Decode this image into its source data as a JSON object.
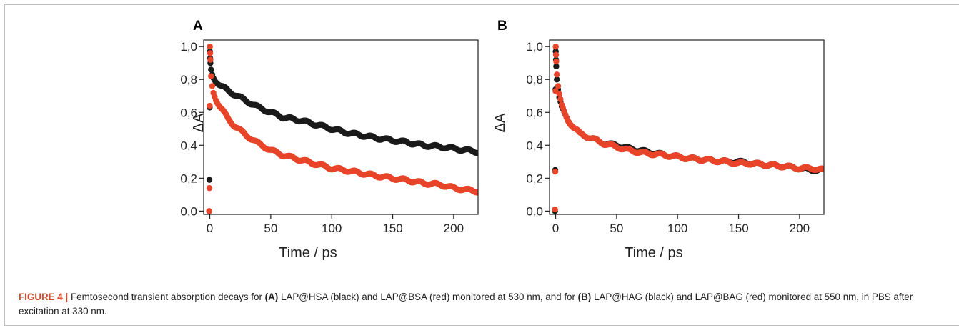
{
  "caption": {
    "figure_label": "FIGURE 4 |",
    "text_1": " Femtosecond transient absorption decays for ",
    "ref_a": "(A)",
    "text_2": " LAP@HSA (black) and LAP@BSA (red) monitored at 530 nm, and for ",
    "ref_b": "(B)",
    "text_3": " LAP@HAG (black) and LAP@BAG (red) monitored at 550 nm, in PBS after excitation at 330 nm."
  },
  "colors": {
    "black_series": "#1a1a1a",
    "red_series": "#e8442a"
  },
  "chart_data": [
    {
      "type": "scatter",
      "panel_label": "A",
      "xlabel": "Time / ps",
      "ylabel": "ΔA",
      "xlim": [
        -5,
        220
      ],
      "ylim": [
        -0.02,
        1.04
      ],
      "xticks": [
        0,
        50,
        100,
        150,
        200
      ],
      "xtick_labels": [
        "0",
        "50",
        "100",
        "150",
        "200"
      ],
      "yticks": [
        0.0,
        0.2,
        0.4,
        0.6,
        0.8,
        1.0
      ],
      "ytick_labels": [
        "0,0",
        "0,2",
        "0,4",
        "0,6",
        "0,8",
        "1,0"
      ],
      "grid": false,
      "series": [
        {
          "color": "black",
          "x": [
            -0.5,
            -0.3,
            -0.1,
            0.1,
            0.3,
            0.5,
            1,
            2,
            3,
            5,
            8,
            10,
            15,
            20,
            30,
            40,
            50,
            60,
            75,
            90,
            100,
            110,
            125,
            140,
            150,
            160,
            175,
            190,
            200,
            210,
            220
          ],
          "y": [
            0.0,
            0.19,
            0.63,
            0.97,
            0.93,
            0.9,
            0.86,
            0.83,
            0.81,
            0.79,
            0.77,
            0.76,
            0.73,
            0.71,
            0.67,
            0.63,
            0.6,
            0.57,
            0.55,
            0.52,
            0.5,
            0.48,
            0.46,
            0.44,
            0.43,
            0.42,
            0.4,
            0.39,
            0.38,
            0.37,
            0.36
          ]
        },
        {
          "color": "red",
          "x": [
            -0.5,
            -0.3,
            -0.1,
            0.1,
            0.3,
            0.5,
            1,
            2,
            3,
            5,
            8,
            10,
            15,
            20,
            30,
            40,
            50,
            60,
            75,
            90,
            100,
            110,
            125,
            140,
            150,
            160,
            175,
            190,
            200,
            210,
            220
          ],
          "y": [
            0.0,
            0.14,
            0.64,
            1.0,
            0.96,
            0.92,
            0.82,
            0.76,
            0.72,
            0.68,
            0.64,
            0.62,
            0.56,
            0.52,
            0.46,
            0.41,
            0.37,
            0.34,
            0.31,
            0.28,
            0.26,
            0.25,
            0.23,
            0.21,
            0.2,
            0.19,
            0.17,
            0.16,
            0.14,
            0.13,
            0.12
          ]
        }
      ]
    },
    {
      "type": "scatter",
      "panel_label": "B",
      "xlabel": "Time / ps",
      "ylabel": "ΔA",
      "xlim": [
        -5,
        220
      ],
      "ylim": [
        -0.02,
        1.04
      ],
      "xticks": [
        0,
        50,
        100,
        150,
        200
      ],
      "xtick_labels": [
        "0",
        "50",
        "100",
        "150",
        "200"
      ],
      "yticks": [
        0.0,
        0.2,
        0.4,
        0.6,
        0.8,
        1.0
      ],
      "ytick_labels": [
        "0,0",
        "0,2",
        "0,4",
        "0,6",
        "0,8",
        "1,0"
      ],
      "grid": false,
      "series": [
        {
          "color": "black",
          "x": [
            -0.5,
            -0.3,
            -0.1,
            0.1,
            0.3,
            0.5,
            1,
            2,
            3,
            5,
            8,
            10,
            15,
            20,
            30,
            40,
            50,
            60,
            75,
            90,
            100,
            110,
            125,
            140,
            150,
            160,
            175,
            190,
            200,
            210,
            220
          ],
          "y": [
            0.0,
            0.25,
            0.74,
            0.97,
            0.92,
            0.88,
            0.8,
            0.74,
            0.69,
            0.63,
            0.58,
            0.55,
            0.51,
            0.47,
            0.44,
            0.41,
            0.4,
            0.38,
            0.36,
            0.34,
            0.33,
            0.32,
            0.31,
            0.3,
            0.3,
            0.29,
            0.28,
            0.27,
            0.26,
            0.25,
            0.25
          ]
        },
        {
          "color": "red",
          "x": [
            -0.5,
            -0.3,
            -0.1,
            0.1,
            0.3,
            0.5,
            1,
            2,
            3,
            5,
            8,
            10,
            15,
            20,
            30,
            40,
            50,
            60,
            75,
            90,
            100,
            110,
            125,
            140,
            150,
            160,
            175,
            190,
            200,
            210,
            220
          ],
          "y": [
            0.01,
            0.24,
            0.73,
            1.0,
            0.95,
            0.91,
            0.83,
            0.76,
            0.71,
            0.64,
            0.58,
            0.55,
            0.51,
            0.47,
            0.44,
            0.41,
            0.39,
            0.37,
            0.35,
            0.34,
            0.33,
            0.32,
            0.31,
            0.3,
            0.29,
            0.29,
            0.28,
            0.27,
            0.26,
            0.26,
            0.25
          ]
        }
      ]
    }
  ]
}
